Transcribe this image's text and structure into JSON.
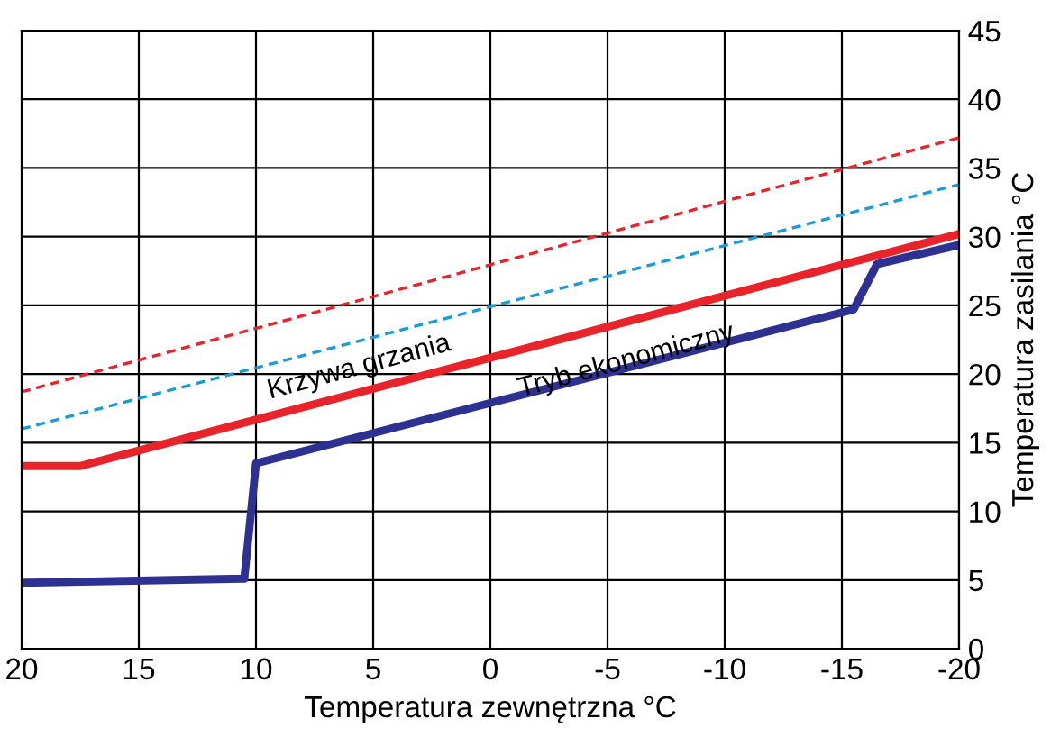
{
  "chart_data": {
    "type": "line",
    "xlabel": "Temperatura zewnętrzna °C",
    "ylabel": "Temperatura zasilania °C",
    "xlim": [
      20,
      -20
    ],
    "xticks": [
      20,
      15,
      10,
      5,
      0,
      -5,
      -10,
      -15,
      -20
    ],
    "ylim": [
      0,
      45
    ],
    "yticks": [
      0,
      5,
      10,
      15,
      20,
      25,
      30,
      35,
      40,
      45
    ],
    "grid": true,
    "legend": false,
    "series": [
      {
        "color": "#e8232a",
        "values": [
          18.7,
          37.2
        ],
        "x": [
          20,
          -20
        ],
        "line_style": "dashed"
      },
      {
        "color": "#1a9ad6",
        "values": [
          16,
          33.8
        ],
        "x": [
          20,
          -20
        ],
        "line_style": "dashed"
      },
      {
        "color": "#e8232a",
        "values": [
          13.3,
          13.3,
          30.2
        ],
        "x": [
          20,
          17.5,
          -20
        ],
        "line_style": "solid"
      },
      {
        "color": "#2e3192",
        "values": [
          4.8,
          5.1,
          13.5,
          24.7,
          28,
          29.4
        ],
        "x": [
          20,
          10.5,
          10,
          -15.5,
          -16.5,
          -20
        ],
        "line_style": "solid"
      }
    ],
    "annotations": [
      "Krzywa grzania",
      "Tryb ekonomiczny"
    ]
  }
}
